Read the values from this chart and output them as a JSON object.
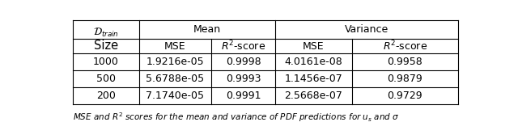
{
  "rows": [
    [
      "1000",
      "1.9216e-05",
      "0.9998",
      "4.0161e-08",
      "0.9958"
    ],
    [
      "500",
      "5.6788e-05",
      "0.9993",
      "1.1456e-07",
      "0.9879"
    ],
    [
      "200",
      "7.1740e-05",
      "0.9991",
      "2.5668e-07",
      "0.9729"
    ]
  ],
  "bg_color": "#ffffff",
  "line_color": "#000000",
  "font_size": 9.0,
  "caption_fontsize": 7.5,
  "fig_width": 6.4,
  "fig_height": 1.72
}
